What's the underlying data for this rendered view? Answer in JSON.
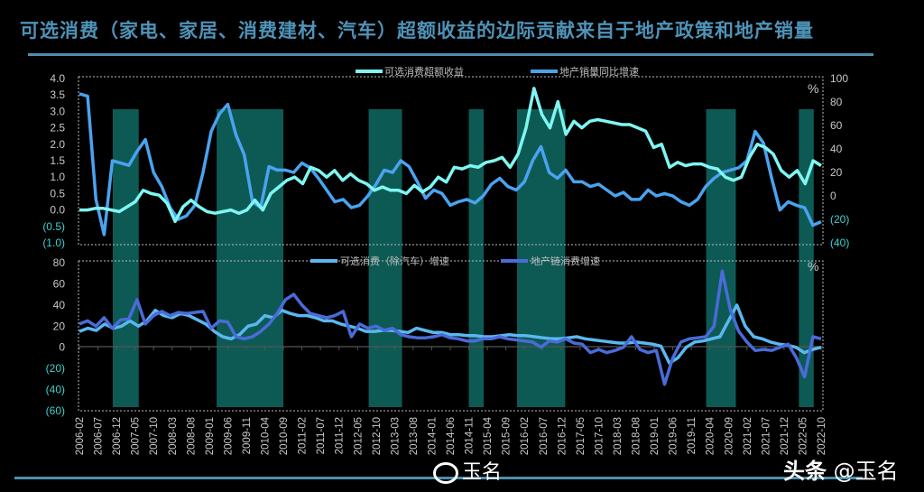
{
  "title": "可选消费（家电、家居、消费建材、汽车）超额收益的边际贡献来自于地产政策和地产销量",
  "colors": {
    "title": "#4f93b8",
    "rule": "#4f8fae",
    "shade": "#0d5a55",
    "excess_return": "#7ff6f2",
    "property_sales": "#4aa3ef",
    "discretionary_ex_auto": "#5ab8f0",
    "property_chain": "#4a6bd8",
    "negative_tick": "#3fd0d0"
  },
  "watermarks": {
    "left": "玉名",
    "right_bold": "头条",
    "right": "@玉名"
  },
  "chart_data": [
    {
      "type": "line",
      "panel": "top",
      "title": "",
      "left_axis": {
        "ticks": [
          "4.0",
          "3.5",
          "3.0",
          "2.5",
          "2.0",
          "1.5",
          "1.0",
          "0.5",
          "0.0",
          "(0.5)",
          "(1.0)"
        ],
        "range": [
          -1.0,
          4.0
        ]
      },
      "right_axis": {
        "ticks": [
          "100",
          "80",
          "60",
          "40",
          "20",
          "0",
          "(20)",
          "(40)"
        ],
        "range": [
          -40,
          100
        ],
        "unit": "%"
      },
      "legend": [
        "可选消费超额收益",
        "地产销量同比增速"
      ],
      "series": [
        {
          "name": "可选消费超额收益",
          "axis": "left",
          "values": [
            0.0,
            0.0,
            0.05,
            0.05,
            0.0,
            -0.05,
            0.1,
            0.25,
            0.6,
            0.5,
            0.45,
            0.2,
            -0.35,
            0.1,
            0.3,
            0.1,
            -0.05,
            -0.1,
            -0.05,
            0.0,
            -0.1,
            0.0,
            0.3,
            0.0,
            0.5,
            0.7,
            0.9,
            1.0,
            0.8,
            1.3,
            1.2,
            1.0,
            1.2,
            0.9,
            1.1,
            0.9,
            0.8,
            0.6,
            0.7,
            0.6,
            0.6,
            0.5,
            0.75,
            0.55,
            0.7,
            1.0,
            0.85,
            1.3,
            1.25,
            1.35,
            1.3,
            1.45,
            1.5,
            1.6,
            1.3,
            1.7,
            2.5,
            3.7,
            2.9,
            2.5,
            3.3,
            2.3,
            2.7,
            2.5,
            2.7,
            2.75,
            2.7,
            2.65,
            2.6,
            2.6,
            2.5,
            2.4,
            1.9,
            2.0,
            1.3,
            1.45,
            1.35,
            1.4,
            1.4,
            1.3,
            1.25,
            1.0,
            0.9,
            1.0,
            1.6,
            2.0,
            1.9,
            1.7,
            1.2,
            1.0,
            1.2,
            0.8,
            1.5,
            1.35
          ]
        },
        {
          "name": "地产销量同比增速",
          "axis": "right",
          "values": [
            87,
            85,
            -3,
            -33,
            30,
            28,
            26,
            38,
            48,
            20,
            8,
            -10,
            -20,
            -17,
            -8,
            20,
            55,
            70,
            78,
            52,
            35,
            -5,
            -10,
            25,
            22,
            22,
            20,
            28,
            24,
            15,
            5,
            -5,
            -3,
            -10,
            -8,
            0,
            10,
            22,
            20,
            30,
            25,
            12,
            -2,
            5,
            2,
            -8,
            -5,
            -3,
            -6,
            0,
            10,
            15,
            8,
            5,
            12,
            30,
            42,
            20,
            15,
            22,
            12,
            12,
            8,
            10,
            5,
            0,
            3,
            -3,
            -3,
            5,
            0,
            2,
            0,
            -5,
            -8,
            -3,
            8,
            15,
            20,
            22,
            24,
            30,
            55,
            45,
            15,
            -12,
            -5,
            -8,
            -10,
            -25,
            -22
          ]
        }
      ],
      "shaded_periods": [
        [
          "2006-11",
          "2007-06"
        ],
        [
          "2009-03",
          "2010-09"
        ],
        [
          "2012-08",
          "2013-05"
        ],
        [
          "2014-11",
          "2015-03"
        ],
        [
          "2015-12",
          "2017-01"
        ],
        [
          "2020-03",
          "2020-11"
        ],
        [
          "2022-04",
          "2022-08"
        ]
      ]
    },
    {
      "type": "line",
      "panel": "bottom",
      "left_axis": {
        "ticks": [
          "80",
          "60",
          "40",
          "20",
          "0",
          "(20)",
          "(40)",
          "(60)"
        ],
        "range": [
          -60,
          80
        ],
        "unit": "%"
      },
      "legend": [
        "可选消费（除汽车）增速",
        "地产链消费增速"
      ],
      "series": [
        {
          "name": "可选消费（除汽车）增速",
          "values": [
            15,
            18,
            16,
            22,
            18,
            20,
            25,
            20,
            25,
            35,
            30,
            28,
            32,
            30,
            26,
            22,
            15,
            10,
            8,
            12,
            20,
            22,
            30,
            28,
            35,
            32,
            30,
            30,
            28,
            25,
            25,
            22,
            20,
            18,
            15,
            15,
            16,
            16,
            15,
            14,
            18,
            16,
            14,
            14,
            12,
            12,
            11,
            11,
            10,
            10,
            11,
            12,
            11,
            11,
            10,
            9,
            8,
            8,
            9,
            10,
            8,
            7,
            6,
            5,
            4,
            4,
            5,
            4,
            3,
            1,
            -15,
            -10,
            0,
            5,
            6,
            8,
            10,
            25,
            40,
            20,
            10,
            8,
            5,
            3,
            2,
            0,
            -5,
            -2,
            0
          ]
        },
        {
          "name": "地产链消费增速",
          "values": [
            22,
            25,
            20,
            28,
            18,
            26,
            27,
            45,
            22,
            30,
            34,
            30,
            33,
            32,
            33,
            34,
            18,
            25,
            24,
            10,
            8,
            10,
            15,
            22,
            32,
            45,
            50,
            40,
            32,
            30,
            28,
            30,
            34,
            10,
            22,
            18,
            20,
            16,
            18,
            12,
            10,
            9,
            9,
            10,
            12,
            9,
            8,
            6,
            6,
            8,
            8,
            10,
            8,
            7,
            6,
            5,
            0,
            6,
            5,
            8,
            4,
            3,
            -5,
            -2,
            -5,
            -3,
            0,
            10,
            -2,
            -5,
            -3,
            -35,
            -10,
            5,
            8,
            9,
            10,
            20,
            72,
            35,
            15,
            5,
            -3,
            -2,
            -3,
            0,
            3,
            -10,
            -28,
            10,
            8
          ]
        }
      ],
      "zero_line": true
    }
  ],
  "x_axis": {
    "labels": [
      "2006-02",
      "2006-07",
      "2006-12",
      "2007-05",
      "2007-10",
      "2008-03",
      "2008-08",
      "2009-01",
      "2009-06",
      "2009-11",
      "2010-04",
      "2010-09",
      "2011-02",
      "2011-07",
      "2011-12",
      "2012-05",
      "2012-10",
      "2013-03",
      "2013-08",
      "2014-01",
      "2014-06",
      "2014-11",
      "2015-04",
      "2015-09",
      "2016-02",
      "2016-07",
      "2016-12",
      "2017-05",
      "2017-10",
      "2018-03",
      "2018-08",
      "2019-01",
      "2019-06",
      "2019-11",
      "2020-04",
      "2020-09",
      "2021-02",
      "2021-07",
      "2021-12",
      "2022-05",
      "2022-10"
    ]
  },
  "percent_unit_label": "%"
}
